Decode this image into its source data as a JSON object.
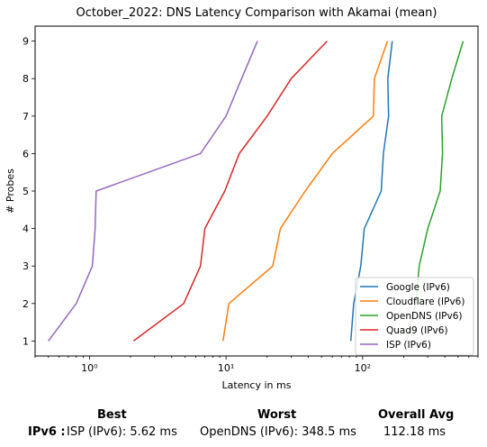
{
  "chart_data": {
    "type": "line",
    "title": "October_2022: DNS Latency Comparison with Akamai (mean)",
    "xlabel": "Latency in ms",
    "ylabel": "# Probes",
    "xscale": "log",
    "xlim": [
      0.4,
      700
    ],
    "ylim": [
      0.6,
      9.4
    ],
    "x_ticks": [
      {
        "value": 1,
        "label": "10⁰"
      },
      {
        "value": 10,
        "label": "10¹"
      },
      {
        "value": 100,
        "label": "10²"
      }
    ],
    "y_ticks": [
      1,
      2,
      3,
      4,
      5,
      6,
      7,
      8,
      9
    ],
    "y_tick_labels": [
      "1",
      "2",
      "3",
      "4",
      "5",
      "6",
      "7",
      "8",
      "9"
    ],
    "grid": false,
    "legend_position": "lower-right",
    "series": [
      {
        "name": "Google (IPv6)",
        "color": "#1f77b4",
        "x": [
          82,
          86,
          97,
          103,
          137,
          142,
          155,
          153,
          165
        ],
        "y": [
          1,
          2,
          3,
          4,
          5,
          6,
          7,
          8,
          9
        ]
      },
      {
        "name": "Cloudflare (IPv6)",
        "color": "#ff7f0e",
        "x": [
          9.5,
          10.5,
          22,
          25,
          38,
          60,
          120,
          122,
          152
        ],
        "y": [
          1,
          2,
          3,
          4,
          5,
          6,
          7,
          8,
          9
        ]
      },
      {
        "name": "OpenDNS (IPv6)",
        "color": "#2ca02c",
        "x": [
          210,
          245,
          260,
          300,
          370,
          385,
          380,
          450,
          545
        ],
        "y": [
          1,
          2,
          3,
          4,
          5,
          6,
          7,
          8,
          9
        ]
      },
      {
        "name": "Quad9 (IPv6)",
        "color": "#d62728",
        "x": [
          2.1,
          4.9,
          6.5,
          7.0,
          9.8,
          12.5,
          20,
          30,
          55
        ],
        "y": [
          1,
          2,
          3,
          4,
          5,
          6,
          7,
          8,
          9
        ]
      },
      {
        "name": "ISP (IPv6)",
        "color": "#9467bd",
        "x": [
          0.5,
          0.8,
          1.05,
          1.1,
          1.12,
          6.5,
          10,
          13,
          17
        ],
        "y": [
          1,
          2,
          3,
          4,
          5,
          6,
          7,
          8,
          9
        ]
      }
    ]
  },
  "summary": {
    "best_header": "Best",
    "worst_header": "Worst",
    "avg_header": "Overall Avg",
    "row_label": "IPv6 :",
    "best_value": "ISP (IPv6): 5.62 ms",
    "worst_value": "OpenDNS (IPv6): 348.5 ms",
    "avg_value": "112.18 ms"
  }
}
